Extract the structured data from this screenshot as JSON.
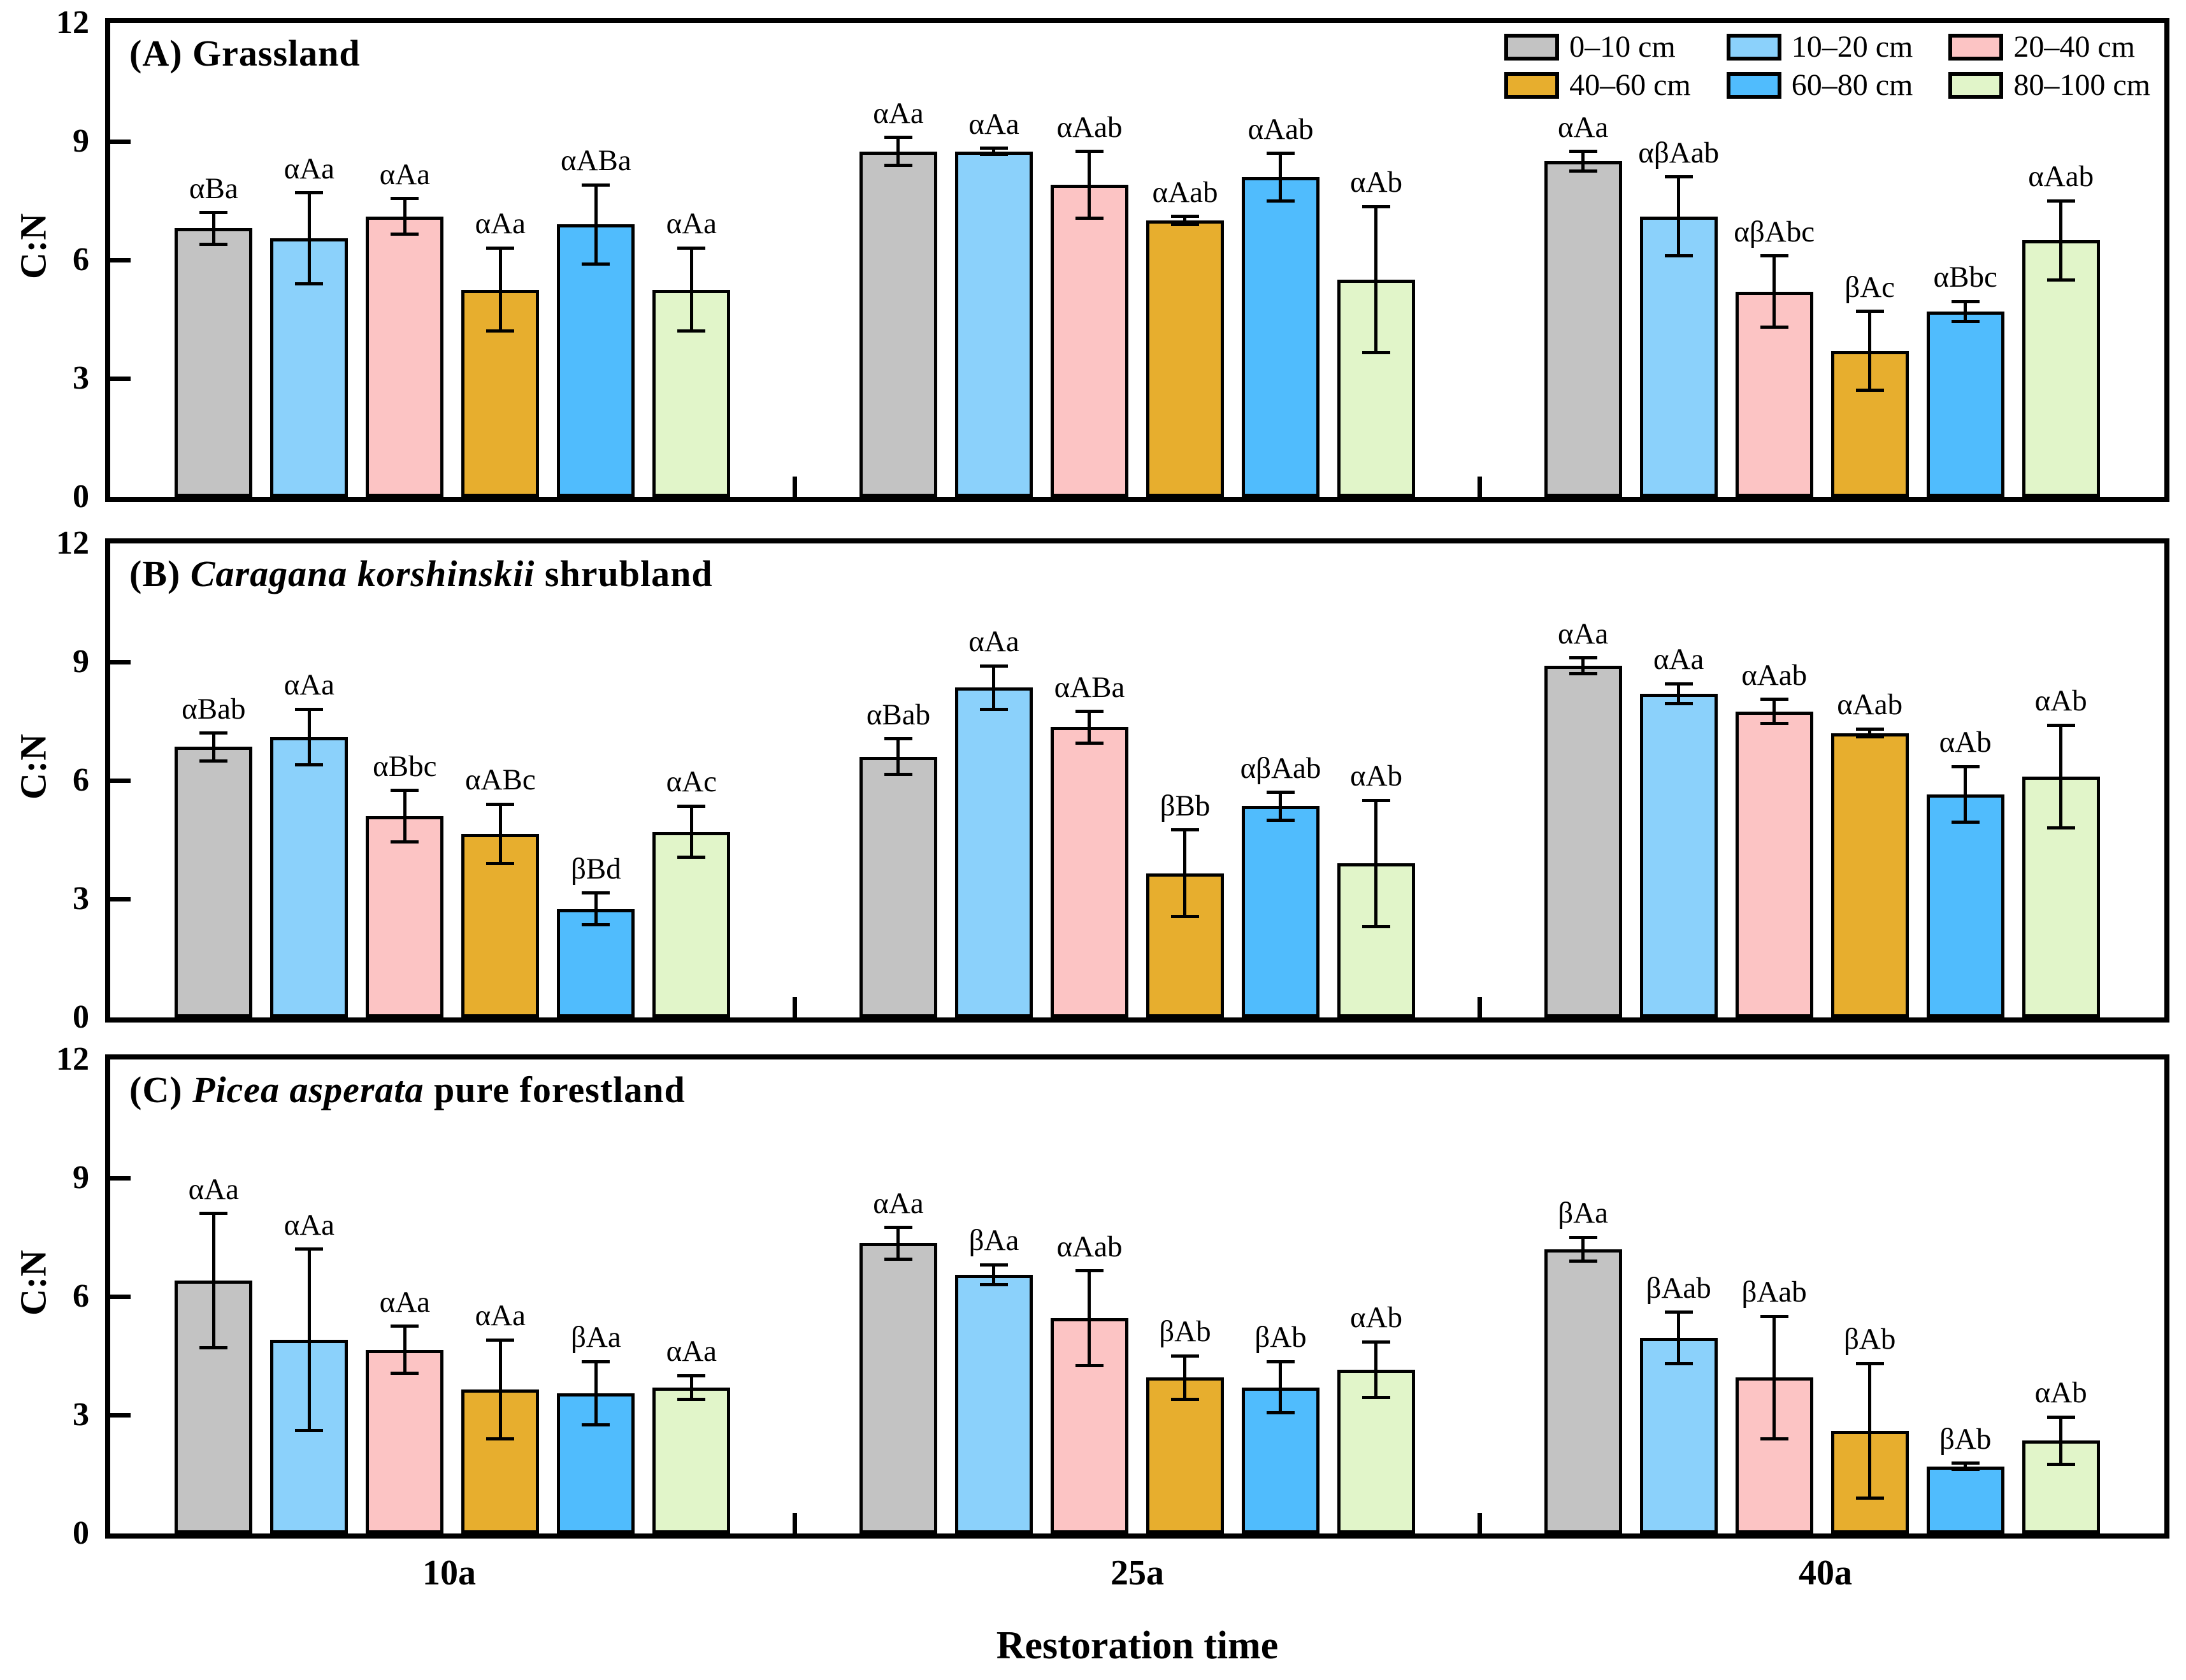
{
  "chart_data": {
    "type": "bar",
    "title": "",
    "xlabel": "Restoration time",
    "ylabel": "C:N",
    "ylim": [
      0,
      12
    ],
    "yticks": [
      0,
      3,
      6,
      9,
      12
    ],
    "ytick_labels": [
      "0",
      "3",
      "6",
      "9",
      "12"
    ],
    "grid": false,
    "legend_position": "top-right-inside-panel-A",
    "categories": [
      "10a",
      "25a",
      "40a"
    ],
    "series": [
      {
        "name": "0–10 cm",
        "color": "#c3c3c3"
      },
      {
        "name": "10–20 cm",
        "color": "#8bd1fb"
      },
      {
        "name": "20–40 cm",
        "color": "#fcc4c4"
      },
      {
        "name": "40–60 cm",
        "color": "#e7ae2e"
      },
      {
        "name": "60–80 cm",
        "color": "#50bcfd"
      },
      {
        "name": "80–100 cm",
        "color": "#e1f5c9"
      }
    ],
    "panels": [
      {
        "title_prefix": "(A)",
        "title_italic": "",
        "title_rest": "Grassland",
        "groups": [
          {
            "category": "10a",
            "bars": [
              {
                "value": 6.8,
                "err": 0.4,
                "sig": "αBa"
              },
              {
                "value": 6.55,
                "err": 1.15,
                "sig": "αAa"
              },
              {
                "value": 7.1,
                "err": 0.45,
                "sig": "αAa"
              },
              {
                "value": 5.25,
                "err": 1.05,
                "sig": "αAa"
              },
              {
                "value": 6.9,
                "err": 1.0,
                "sig": "αABa"
              },
              {
                "value": 5.25,
                "err": 1.05,
                "sig": "αAa"
              }
            ]
          },
          {
            "category": "25a",
            "bars": [
              {
                "value": 8.75,
                "err": 0.35,
                "sig": "αAa"
              },
              {
                "value": 8.75,
                "err": 0.08,
                "sig": "αAa"
              },
              {
                "value": 7.9,
                "err": 0.85,
                "sig": "αAab"
              },
              {
                "value": 7.0,
                "err": 0.1,
                "sig": "αAab"
              },
              {
                "value": 8.1,
                "err": 0.6,
                "sig": "αAab"
              },
              {
                "value": 5.5,
                "err": 1.85,
                "sig": "αAb"
              }
            ]
          },
          {
            "category": "40a",
            "bars": [
              {
                "value": 8.5,
                "err": 0.25,
                "sig": "αAa"
              },
              {
                "value": 7.1,
                "err": 1.0,
                "sig": "αβAab"
              },
              {
                "value": 5.2,
                "err": 0.9,
                "sig": "αβAbc"
              },
              {
                "value": 3.7,
                "err": 1.0,
                "sig": "βAc"
              },
              {
                "value": 4.7,
                "err": 0.25,
                "sig": "αBbc"
              },
              {
                "value": 6.5,
                "err": 1.0,
                "sig": "αAab"
              }
            ]
          }
        ]
      },
      {
        "title_prefix": "(B)",
        "title_italic": "Caragana korshinskii",
        "title_rest": "shrubland",
        "groups": [
          {
            "category": "10a",
            "bars": [
              {
                "value": 6.85,
                "err": 0.35,
                "sig": "αBab"
              },
              {
                "value": 7.1,
                "err": 0.7,
                "sig": "αAa"
              },
              {
                "value": 5.1,
                "err": 0.65,
                "sig": "αBbc"
              },
              {
                "value": 4.65,
                "err": 0.75,
                "sig": "αABc"
              },
              {
                "value": 2.75,
                "err": 0.4,
                "sig": "βBd"
              },
              {
                "value": 4.7,
                "err": 0.65,
                "sig": "αAc"
              }
            ]
          },
          {
            "category": "25a",
            "bars": [
              {
                "value": 6.6,
                "err": 0.45,
                "sig": "αBab"
              },
              {
                "value": 8.35,
                "err": 0.55,
                "sig": "αAa"
              },
              {
                "value": 7.35,
                "err": 0.4,
                "sig": "αABa"
              },
              {
                "value": 3.65,
                "err": 1.1,
                "sig": "βBb"
              },
              {
                "value": 5.35,
                "err": 0.35,
                "sig": "αβAab"
              },
              {
                "value": 3.9,
                "err": 1.6,
                "sig": "αAb"
              }
            ]
          },
          {
            "category": "40a",
            "bars": [
              {
                "value": 8.9,
                "err": 0.2,
                "sig": "αAa"
              },
              {
                "value": 8.2,
                "err": 0.25,
                "sig": "αAa"
              },
              {
                "value": 7.75,
                "err": 0.3,
                "sig": "αAab"
              },
              {
                "value": 7.2,
                "err": 0.1,
                "sig": "αAab"
              },
              {
                "value": 5.65,
                "err": 0.7,
                "sig": "αAb"
              },
              {
                "value": 6.1,
                "err": 1.3,
                "sig": "αAb"
              }
            ]
          }
        ]
      },
      {
        "title_prefix": "(C)",
        "title_italic": "Picea asperata",
        "title_rest": "pure forestland",
        "groups": [
          {
            "category": "10a",
            "bars": [
              {
                "value": 6.4,
                "err": 1.7,
                "sig": "αAa"
              },
              {
                "value": 4.9,
                "err": 2.3,
                "sig": "αAa"
              },
              {
                "value": 4.65,
                "err": 0.6,
                "sig": "αAa"
              },
              {
                "value": 3.65,
                "err": 1.25,
                "sig": "αAa"
              },
              {
                "value": 3.55,
                "err": 0.8,
                "sig": "βAa"
              },
              {
                "value": 3.7,
                "err": 0.3,
                "sig": "αAa"
              }
            ]
          },
          {
            "category": "25a",
            "bars": [
              {
                "value": 7.35,
                "err": 0.4,
                "sig": "αAa"
              },
              {
                "value": 6.55,
                "err": 0.25,
                "sig": "βAa"
              },
              {
                "value": 5.45,
                "err": 1.2,
                "sig": "αAab"
              },
              {
                "value": 3.95,
                "err": 0.55,
                "sig": "βAb"
              },
              {
                "value": 3.7,
                "err": 0.65,
                "sig": "βAb"
              },
              {
                "value": 4.15,
                "err": 0.7,
                "sig": "αAb"
              }
            ]
          },
          {
            "category": "40a",
            "bars": [
              {
                "value": 7.2,
                "err": 0.3,
                "sig": "βAa"
              },
              {
                "value": 4.95,
                "err": 0.65,
                "sig": "βAab"
              },
              {
                "value": 3.95,
                "err": 1.55,
                "sig": "βAab"
              },
              {
                "value": 2.6,
                "err": 1.7,
                "sig": "βAb"
              },
              {
                "value": 1.7,
                "err": 0.08,
                "sig": "βAb"
              },
              {
                "value": 2.35,
                "err": 0.6,
                "sig": "αAb"
              }
            ]
          }
        ]
      }
    ]
  }
}
